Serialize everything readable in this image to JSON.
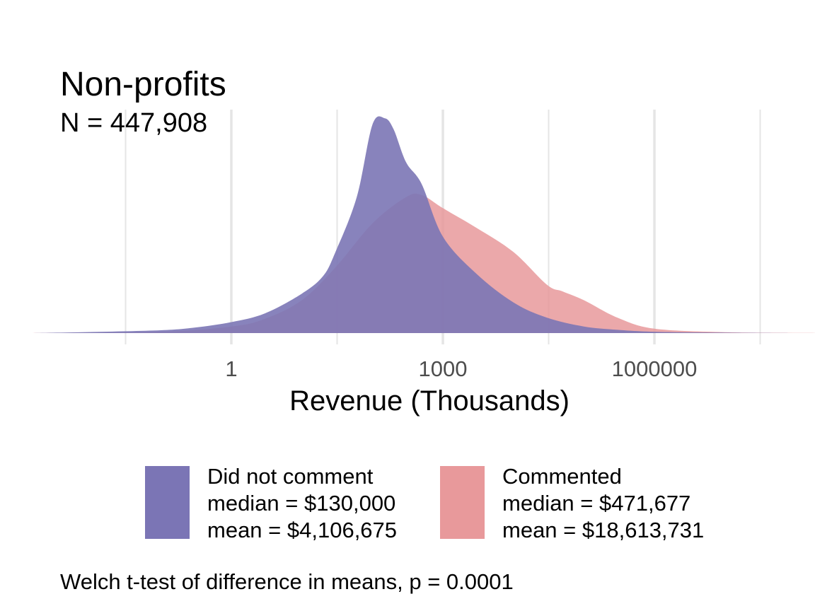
{
  "title": "Non-profits",
  "subtitle": "N = 447,908",
  "footnote": "Welch t-test of difference in means, p = 0.0001",
  "colors": {
    "did_not_comment": "#7B75B5",
    "commented": "#E8999B",
    "grid": "#E5E5E5",
    "tick_text": "#4D4D4D"
  },
  "chart_data": {
    "type": "area",
    "xlabel": "Revenue (Thousands)",
    "x_scale": "log10",
    "x_tick_labels": [
      "1",
      "1000",
      "1000000"
    ],
    "x_ticks": [
      1,
      1000,
      1000000
    ],
    "xlim": [
      0.001,
      1000000000
    ],
    "ylim": [
      0,
      1
    ],
    "grid": "vertical major and minor",
    "legend_position": "bottom",
    "series": [
      {
        "name": "Did not comment",
        "stats": [
          "median = $130,000",
          "mean = $4,106,675"
        ],
        "color_key": "did_not_comment",
        "x": [
          0.0015,
          0.01,
          0.1,
          0.3,
          1,
          3,
          10,
          20,
          30,
          60,
          100,
          150,
          200,
          300,
          500,
          1000,
          3000,
          10000,
          30000,
          100000,
          300000,
          1000000,
          10000000,
          100000000
        ],
        "y": [
          0.0,
          0.005,
          0.013,
          0.025,
          0.05,
          0.09,
          0.18,
          0.26,
          0.37,
          0.62,
          0.95,
          0.98,
          0.93,
          0.78,
          0.68,
          0.44,
          0.27,
          0.14,
          0.07,
          0.03,
          0.015,
          0.006,
          0.002,
          0.0
        ]
      },
      {
        "name": "Commented",
        "stats": [
          "median = $471,677",
          "mean = $18,613,731"
        ],
        "color_key": "commented",
        "x": [
          0.0015,
          0.1,
          1,
          3,
          10,
          30,
          100,
          300,
          500,
          1000,
          3000,
          10000,
          30000,
          50000,
          100000,
          300000,
          1000000,
          10000000,
          100000000,
          1000000000
        ],
        "y": [
          0.0,
          0.006,
          0.03,
          0.065,
          0.15,
          0.3,
          0.5,
          0.62,
          0.63,
          0.57,
          0.48,
          0.37,
          0.22,
          0.19,
          0.15,
          0.07,
          0.02,
          0.004,
          0.001,
          0.0
        ]
      }
    ]
  }
}
